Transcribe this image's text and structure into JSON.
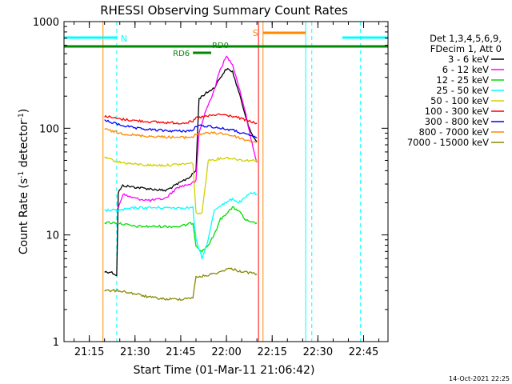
{
  "chart_data": {
    "type": "line",
    "title": "RHESSI Observing Summary Count Rates",
    "xlabel": "Start Time (01-Mar-11 21:06:42)",
    "ylabel": "Count Rate (s⁻¹ detector⁻¹)",
    "ylabel_main": "Count Rate (s",
    "ylabel_sup1": "-1",
    "ylabel_mid": " detector",
    "ylabel_sup2": "-1",
    "ylabel_end": ")",
    "y_scale": "log",
    "ylim": [
      1,
      1000
    ],
    "y_ticks": [
      {
        "value": 1,
        "label": "1"
      },
      {
        "value": 10,
        "label": "10"
      },
      {
        "value": 100,
        "label": "100"
      },
      {
        "value": 1000,
        "label": "1000"
      }
    ],
    "xlim": [
      "21:06:42",
      "22:53:00"
    ],
    "x_ticks": [
      {
        "time": "21:15",
        "label": "21:15"
      },
      {
        "time": "21:30",
        "label": "21:30"
      },
      {
        "time": "21:45",
        "label": "21:45"
      },
      {
        "time": "22:00",
        "label": "22:00"
      },
      {
        "time": "22:15",
        "label": "22:15"
      },
      {
        "time": "22:30",
        "label": "22:30"
      },
      {
        "time": "22:45",
        "label": "22:45"
      }
    ],
    "legend": {
      "placement": "right",
      "header": [
        "Det 1,3,4,5,6,9,",
        "FDecim 1, Att 0"
      ],
      "entries": [
        {
          "label": "3 - 6 keV",
          "color": "#000000"
        },
        {
          "label": "6 - 12 keV",
          "color": "#ff00ff"
        },
        {
          "label": "12 - 25 keV",
          "color": "#00dd00"
        },
        {
          "label": "25 - 50 keV",
          "color": "#00ffff"
        },
        {
          "label": "50 - 100 keV",
          "color": "#d0d000"
        },
        {
          "label": "100 - 300 keV",
          "color": "#ff0000"
        },
        {
          "label": "300 - 800 keV",
          "color": "#0000ff"
        },
        {
          "label": "800 - 7000 keV",
          "color": "#ff8800"
        },
        {
          "label": "7000 - 15000 keV",
          "color": "#888800"
        }
      ]
    },
    "series": [
      {
        "name": "3 - 6 keV",
        "color": "#000000",
        "points": [
          [
            "21:20",
            4.5
          ],
          [
            "21:22",
            4.5
          ],
          [
            "21:24",
            4.2
          ],
          [
            "21:24.5",
            25
          ],
          [
            "21:26",
            29
          ],
          [
            "21:30",
            28
          ],
          [
            "21:35",
            27
          ],
          [
            "21:40",
            26
          ],
          [
            "21:44",
            30
          ],
          [
            "21:48",
            35
          ],
          [
            "21:50",
            40
          ],
          [
            "21:51",
            190
          ],
          [
            "21:53",
            210
          ],
          [
            "21:56",
            240
          ],
          [
            "21:58",
            300
          ],
          [
            "22:00",
            360
          ],
          [
            "22:02",
            340
          ],
          [
            "22:04",
            220
          ],
          [
            "22:06",
            140
          ],
          [
            "22:08",
            90
          ],
          [
            "22:10",
            75
          ]
        ]
      },
      {
        "name": "6 - 12 keV",
        "color": "#ff00ff",
        "points": [
          [
            "21:24.5",
            18
          ],
          [
            "21:26",
            24
          ],
          [
            "21:30",
            22
          ],
          [
            "21:35",
            21
          ],
          [
            "21:40",
            22
          ],
          [
            "21:44",
            28
          ],
          [
            "21:48",
            30
          ],
          [
            "21:50",
            32
          ],
          [
            "21:51",
            90
          ],
          [
            "21:53",
            140
          ],
          [
            "21:56",
            230
          ],
          [
            "21:58",
            360
          ],
          [
            "22:00",
            470
          ],
          [
            "22:02",
            400
          ],
          [
            "22:04",
            250
          ],
          [
            "22:06",
            150
          ],
          [
            "22:08",
            80
          ],
          [
            "22:10",
            48
          ]
        ]
      },
      {
        "name": "12 - 25 keV",
        "color": "#00dd00",
        "points": [
          [
            "21:20",
            13
          ],
          [
            "21:24",
            13
          ],
          [
            "21:30",
            12
          ],
          [
            "21:35",
            12
          ],
          [
            "21:40",
            12
          ],
          [
            "21:45",
            12
          ],
          [
            "21:49",
            13
          ],
          [
            "21:50",
            8
          ],
          [
            "21:52",
            7
          ],
          [
            "21:54",
            8
          ],
          [
            "21:56",
            10
          ],
          [
            "21:58",
            14
          ],
          [
            "22:00",
            16
          ],
          [
            "22:02",
            18
          ],
          [
            "22:04",
            17
          ],
          [
            "22:06",
            14
          ],
          [
            "22:08",
            13
          ],
          [
            "22:10",
            13
          ]
        ]
      },
      {
        "name": "25 - 50 keV",
        "color": "#00ffff",
        "points": [
          [
            "21:20",
            17
          ],
          [
            "21:25",
            17
          ],
          [
            "21:30",
            18
          ],
          [
            "21:35",
            18
          ],
          [
            "21:40",
            18
          ],
          [
            "21:45",
            18
          ],
          [
            "21:49",
            18
          ],
          [
            "21:50",
            9
          ],
          [
            "21:52",
            6
          ],
          [
            "21:54",
            9
          ],
          [
            "21:56",
            17
          ],
          [
            "21:58",
            19
          ],
          [
            "22:00",
            20
          ],
          [
            "22:02",
            22
          ],
          [
            "22:04",
            20
          ],
          [
            "22:06",
            22
          ],
          [
            "22:08",
            25
          ],
          [
            "22:10",
            24
          ]
        ]
      },
      {
        "name": "50 - 100 keV",
        "color": "#d0d000",
        "points": [
          [
            "21:20",
            53
          ],
          [
            "21:25",
            48
          ],
          [
            "21:30",
            46
          ],
          [
            "21:35",
            45
          ],
          [
            "21:40",
            45
          ],
          [
            "21:45",
            46
          ],
          [
            "21:49",
            47
          ],
          [
            "21:50",
            16
          ],
          [
            "21:52",
            16
          ],
          [
            "21:54",
            50
          ],
          [
            "21:58",
            52
          ],
          [
            "22:00",
            53
          ],
          [
            "22:02",
            52
          ],
          [
            "22:04",
            51
          ],
          [
            "22:06",
            50
          ],
          [
            "22:08",
            50
          ],
          [
            "22:10",
            50
          ]
        ]
      },
      {
        "name": "100 - 300 keV",
        "color": "#ff0000",
        "points": [
          [
            "21:20",
            130
          ],
          [
            "21:25",
            122
          ],
          [
            "21:30",
            118
          ],
          [
            "21:35",
            115
          ],
          [
            "21:40",
            113
          ],
          [
            "21:45",
            112
          ],
          [
            "21:49",
            115
          ],
          [
            "21:50",
            125
          ],
          [
            "21:54",
            130
          ],
          [
            "21:58",
            135
          ],
          [
            "22:00",
            132
          ],
          [
            "22:02",
            130
          ],
          [
            "22:04",
            125
          ],
          [
            "22:06",
            120
          ],
          [
            "22:08",
            115
          ],
          [
            "22:10",
            112
          ]
        ]
      },
      {
        "name": "300 - 800 keV",
        "color": "#0000ff",
        "points": [
          [
            "21:20",
            118
          ],
          [
            "21:25",
            108
          ],
          [
            "21:30",
            100
          ],
          [
            "21:35",
            97
          ],
          [
            "21:40",
            95
          ],
          [
            "21:45",
            94
          ],
          [
            "21:49",
            95
          ],
          [
            "21:50",
            105
          ],
          [
            "21:54",
            105
          ],
          [
            "21:58",
            100
          ],
          [
            "22:00",
            98
          ],
          [
            "22:02",
            96
          ],
          [
            "22:04",
            92
          ],
          [
            "22:06",
            88
          ],
          [
            "22:08",
            85
          ],
          [
            "22:10",
            82
          ]
        ]
      },
      {
        "name": "800 - 7000 keV",
        "color": "#ff8800",
        "points": [
          [
            "21:20",
            98
          ],
          [
            "21:25",
            90
          ],
          [
            "21:30",
            86
          ],
          [
            "21:35",
            84
          ],
          [
            "21:40",
            83
          ],
          [
            "21:45",
            82
          ],
          [
            "21:49",
            83
          ],
          [
            "21:50",
            88
          ],
          [
            "21:54",
            90
          ],
          [
            "21:58",
            90
          ],
          [
            "22:00",
            88
          ],
          [
            "22:02",
            85
          ],
          [
            "22:04",
            82
          ],
          [
            "22:06",
            78
          ],
          [
            "22:08",
            76
          ],
          [
            "22:10",
            74
          ]
        ]
      },
      {
        "name": "7000 - 15000 keV",
        "color": "#888800",
        "points": [
          [
            "21:20",
            3.0
          ],
          [
            "21:25",
            3.0
          ],
          [
            "21:30",
            2.8
          ],
          [
            "21:35",
            2.6
          ],
          [
            "21:40",
            2.5
          ],
          [
            "21:45",
            2.5
          ],
          [
            "21:49",
            2.6
          ],
          [
            "21:50",
            4.0
          ],
          [
            "21:54",
            4.2
          ],
          [
            "21:58",
            4.5
          ],
          [
            "22:00",
            4.8
          ],
          [
            "22:02",
            4.8
          ],
          [
            "22:04",
            4.6
          ],
          [
            "22:06",
            4.5
          ],
          [
            "22:08",
            4.4
          ],
          [
            "22:10",
            4.3
          ]
        ]
      }
    ],
    "annotations": {
      "night_bars": [
        {
          "label": "N",
          "start": "21:06:42",
          "end": "21:24",
          "color": "#00ffff"
        },
        {
          "label": "",
          "start": "22:38",
          "end": "22:53",
          "color": "#00ffff"
        }
      ],
      "saa_bar": {
        "label": "S",
        "start": "22:12",
        "end": "22:26",
        "color": "#ff8800"
      },
      "decimation_bar": {
        "label": "RD0",
        "start": "21:06:42",
        "end": "22:53",
        "color": "#008800"
      },
      "rd6_bar": {
        "label": "RD6",
        "start": "21:49",
        "end": "21:55",
        "color": "#008800"
      },
      "vlines": [
        {
          "time": "21:06:42",
          "color": "#00ffff",
          "style": "solid"
        },
        {
          "time": "21:24",
          "color": "#00ffff",
          "style": "dashed"
        },
        {
          "time": "21:19.5",
          "color": "#ff8800",
          "style": "solid"
        },
        {
          "time": "22:12",
          "color": "#ff8800",
          "style": "solid"
        },
        {
          "time": "22:26",
          "color": "#00ffff",
          "style": "solid"
        },
        {
          "time": "22:28",
          "color": "#00ffff",
          "style": "dashed"
        },
        {
          "time": "22:44",
          "color": "#00ffff",
          "style": "dashed"
        },
        {
          "time": "22:10.5",
          "color": "#ff0000",
          "style": "solid"
        }
      ]
    },
    "footer": "14-Oct-2021 22:25"
  }
}
